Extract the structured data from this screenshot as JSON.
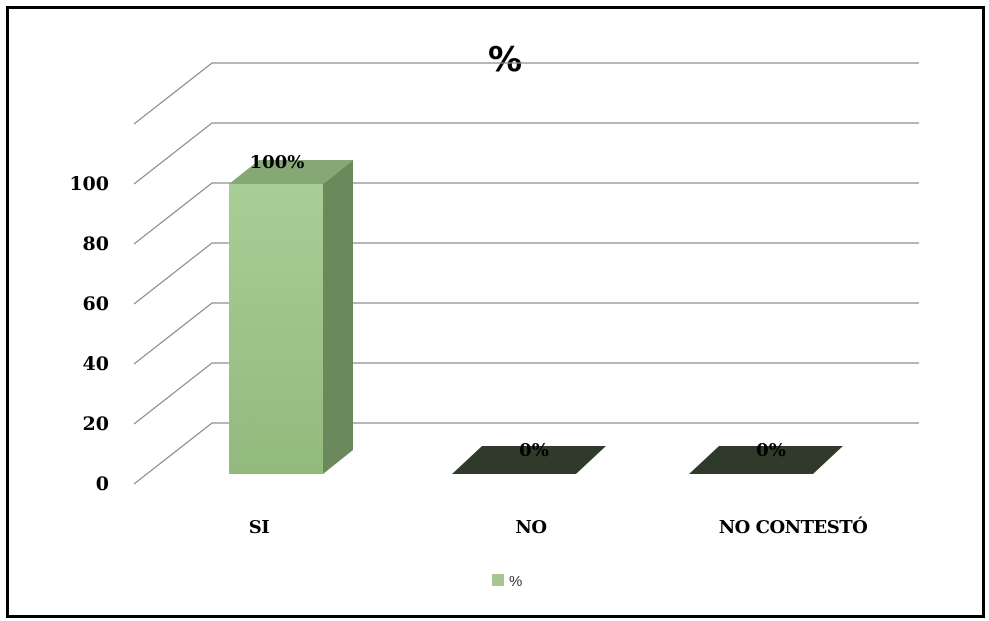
{
  "chart_data": {
    "type": "bar",
    "title": "%",
    "categories": [
      "SI",
      "NO",
      "NO CONTESTÓ"
    ],
    "series": [
      {
        "name": "%",
        "values": [
          100,
          0,
          0
        ]
      }
    ],
    "data_labels": [
      "100%",
      "0%",
      "0%"
    ],
    "y_ticks": [
      "0",
      "20",
      "40",
      "60",
      "80",
      "100"
    ],
    "ylim": [
      0,
      120
    ],
    "grid": true,
    "legend": "bottom",
    "style": "3d-column",
    "colors": {
      "bar_front": "#a3c78f",
      "bar_side": "#6b8a5c",
      "bar_top": "#86a874",
      "zero_bar": "#2f3a2a",
      "grid": "#8c8c8c"
    }
  }
}
